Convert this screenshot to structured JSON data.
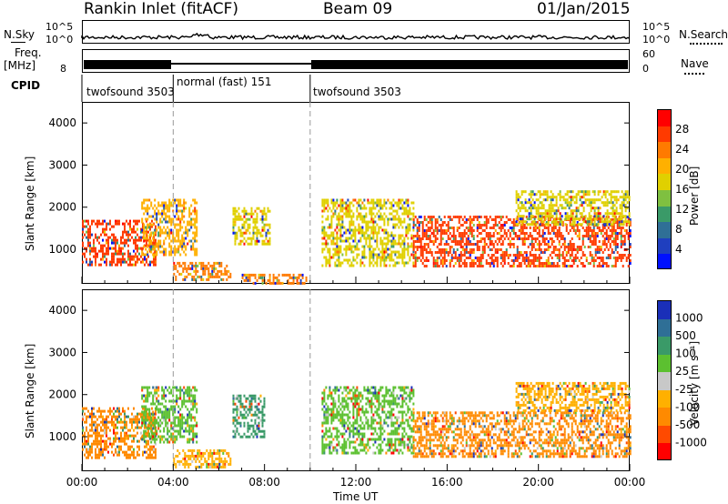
{
  "header": {
    "station": "Rankin Inlet (fitACF)",
    "beam": "Beam 09",
    "date": "01/Jan/2015"
  },
  "top_panels": {
    "nsky_label": "N.Sky",
    "nsearch_label": "N.Search",
    "nsky_ticks": [
      "10^5",
      "10^0"
    ],
    "freq_label_1": "Freq.",
    "freq_label_2": "[MHz]",
    "freq_ticks": [
      "8"
    ],
    "nave_label": "Nave",
    "nave_ticks": [
      "60",
      "0"
    ],
    "cpid_label": "CPID",
    "cpid_segments": [
      {
        "label": "twofsound 3503",
        "start_h": 0,
        "end_h": 4
      },
      {
        "label": "normal (fast) 151",
        "start_h": 4,
        "end_h": 10
      },
      {
        "label": "twofsound 3503",
        "start_h": 10,
        "end_h": 24
      }
    ]
  },
  "chart_data": [
    {
      "type": "heatmap",
      "title": "Power",
      "xlabel": "Time UT",
      "ylabel": "Slant Range [km]",
      "xlim_hours": [
        0,
        24
      ],
      "ylim": [
        180,
        4500
      ],
      "yticks": [
        1000,
        2000,
        3000,
        4000
      ],
      "colorbar_label": "Power [dB]",
      "colorbar_ticks": [
        "28",
        "24",
        "20",
        "16",
        "12",
        "8",
        "4"
      ],
      "colorbar_colors": [
        "#ff0000",
        "#ff3a00",
        "#ff7a00",
        "#ffb000",
        "#e0d000",
        "#7fc040",
        "#3a9a68",
        "#2f6f96",
        "#1f3fbf",
        "#0010ff"
      ],
      "echo_regions": [
        {
          "t0": 0.0,
          "t1": 3.2,
          "r0": 600,
          "r1": 1700,
          "level": "28"
        },
        {
          "t0": 2.6,
          "t1": 5.0,
          "r0": 900,
          "r1": 2200,
          "level": "20"
        },
        {
          "t0": 4.0,
          "t1": 6.5,
          "r0": 250,
          "r1": 700,
          "level": "24"
        },
        {
          "t0": 6.6,
          "t1": 8.2,
          "r0": 1100,
          "r1": 2000,
          "level": "16"
        },
        {
          "t0": 7.0,
          "t1": 9.8,
          "r0": 220,
          "r1": 420,
          "level": "24"
        },
        {
          "t0": 10.5,
          "t1": 14.5,
          "r0": 600,
          "r1": 2200,
          "level": "16"
        },
        {
          "t0": 14.5,
          "t1": 24.0,
          "r0": 600,
          "r1": 1800,
          "level": "28"
        },
        {
          "t0": 19.0,
          "t1": 24.0,
          "r0": 1600,
          "r1": 2400,
          "level": "16"
        }
      ]
    },
    {
      "type": "heatmap",
      "title": "Velocity",
      "xlabel": "Time UT",
      "ylabel": "Slant Range [km]",
      "xlim_hours": [
        0,
        24
      ],
      "ylim": [
        180,
        4500
      ],
      "yticks": [
        1000,
        2000,
        3000,
        4000
      ],
      "xticks": [
        "00:00",
        "04:00",
        "08:00",
        "12:00",
        "16:00",
        "20:00",
        "00:00"
      ],
      "colorbar_label": "Velocity [m s⁻¹]",
      "colorbar_ticks": [
        "1000",
        "500",
        "100",
        "25",
        "-25",
        "-100",
        "-500",
        "-1000"
      ],
      "colorbar_colors": [
        "#1a2fb8",
        "#2f6f96",
        "#3a9a68",
        "#5cc030",
        "#c8c8c8",
        "#ffb000",
        "#ff8a00",
        "#ff4a00",
        "#ff0000"
      ],
      "echo_regions": [
        {
          "t0": 0.0,
          "t1": 3.2,
          "r0": 500,
          "r1": 1700,
          "level": "-100"
        },
        {
          "t0": 2.6,
          "t1": 5.0,
          "r0": 900,
          "r1": 2200,
          "level": "100"
        },
        {
          "t0": 4.0,
          "t1": 6.5,
          "r0": 250,
          "r1": 700,
          "level": "-25"
        },
        {
          "t0": 6.6,
          "t1": 8.0,
          "r0": 1000,
          "r1": 2000,
          "level": "500"
        },
        {
          "t0": 10.5,
          "t1": 14.5,
          "r0": 600,
          "r1": 2200,
          "level": "100"
        },
        {
          "t0": 14.5,
          "t1": 24.0,
          "r0": 500,
          "r1": 1600,
          "level": "-100"
        },
        {
          "t0": 19.0,
          "t1": 24.0,
          "r0": 1600,
          "r1": 2300,
          "level": "-25"
        }
      ]
    }
  ]
}
